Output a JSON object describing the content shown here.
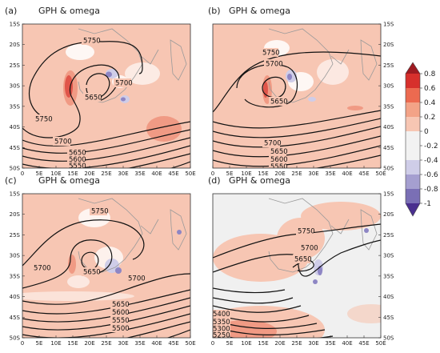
{
  "colors": {
    "positive_light": "#f7c6b3",
    "positive_mid": "#f09a84",
    "positive_strong": "#e0554a",
    "negative_light": "#cfcde8",
    "negative_mid": "#8e86c4",
    "negative_strong": "#4a2f8f",
    "contour": "#111111",
    "coast": "#9a9a9a"
  },
  "axes": {
    "lon_ticks": [
      "0",
      "5E",
      "10E",
      "15E",
      "20E",
      "25E",
      "30E",
      "35E",
      "40E",
      "45E",
      "50E"
    ],
    "lat_ticks": [
      "15S",
      "20S",
      "25S",
      "30S",
      "35S",
      "40S",
      "45S",
      "50S"
    ]
  },
  "colorbar": {
    "ticks": [
      "0.8",
      "0.6",
      "0.4",
      "0.2",
      "0",
      "-0.2",
      "-0.4",
      "-0.6",
      "-0.8",
      "-1"
    ]
  },
  "panels": [
    {
      "label": "(a)",
      "title": "GPH & omega",
      "contour_labels": [
        "5750",
        "5700",
        "5650",
        "5750",
        "5700",
        "5650",
        "5600",
        "5550"
      ]
    },
    {
      "label": "(b)",
      "title": "GPH & omega",
      "contour_labels": [
        "5750",
        "5700",
        "5650",
        "5700",
        "5650",
        "5600",
        "5550"
      ]
    },
    {
      "label": "(c)",
      "title": "GPH & omega",
      "contour_labels": [
        "5750",
        "5700",
        "5650",
        "5700",
        "5650",
        "5600",
        "5550",
        "5500"
      ]
    },
    {
      "label": "(d)",
      "title": "GPH & omega",
      "contour_labels": [
        "5750",
        "5700",
        "5650",
        "5400",
        "5350",
        "5300",
        "5250"
      ]
    }
  ]
}
